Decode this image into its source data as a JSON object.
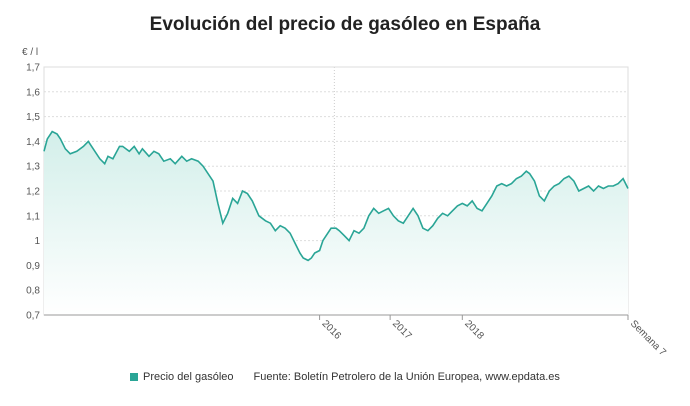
{
  "page": {
    "title": "Evolución del precio de gasóleo en España"
  },
  "legend": {
    "series_label": "Precio del gasóleo",
    "source": "Fuente: Boletín Petrolero de la Unión Europea, www.epdata.es"
  },
  "colors": {
    "line": "#2aa596",
    "fill_top": "#d3efea",
    "grid": "#dddddd",
    "axis": "#999999"
  },
  "chart_data": {
    "type": "area",
    "ylabel": "€ / l",
    "ylim": [
      0.7,
      1.7
    ],
    "yticks": [
      0.7,
      0.8,
      0.9,
      1,
      1.1,
      1.2,
      1.3,
      1.4,
      1.5,
      1.6,
      1.7
    ],
    "ytick_labels": [
      "0,7",
      "0,8",
      "0,9",
      "1",
      "1,1",
      "1,2",
      "1,3",
      "1,4",
      "1,5",
      "1,6",
      "1,7"
    ],
    "xlim": [
      0,
      356
    ],
    "xticks": [
      {
        "x": 168,
        "label": "2016"
      },
      {
        "x": 211,
        "label": "2017"
      },
      {
        "x": 255,
        "label": "2018"
      },
      {
        "x": 356,
        "label": "Semana 7"
      }
    ],
    "grid": true,
    "grid_vertical_dotted_at": [
      177
    ],
    "series": [
      {
        "name": "Precio del gasóleo",
        "x": [
          0,
          2,
          5,
          8,
          10,
          13,
          16,
          20,
          24,
          27,
          30,
          34,
          37,
          39,
          42,
          46,
          48,
          52,
          55,
          58,
          60,
          64,
          67,
          70,
          73,
          77,
          80,
          84,
          87,
          90,
          94,
          97,
          100,
          103,
          106,
          109,
          112,
          115,
          118,
          121,
          124,
          127,
          131,
          135,
          138,
          141,
          144,
          147,
          150,
          153,
          156,
          158,
          161,
          163,
          165,
          168,
          170,
          172,
          175,
          178,
          180,
          183,
          186,
          189,
          192,
          195,
          198,
          201,
          204,
          207,
          210,
          213,
          216,
          219,
          222,
          225,
          228,
          231,
          234,
          237,
          240,
          243,
          246,
          249,
          252,
          255,
          258,
          261,
          264,
          267,
          270,
          273,
          276,
          279,
          282,
          285,
          288,
          291,
          294,
          296,
          299,
          302,
          305,
          308,
          311,
          314,
          317,
          320,
          323,
          326,
          329,
          332,
          335,
          338,
          341,
          344,
          347,
          350,
          353,
          356
        ],
        "values": [
          1.36,
          1.41,
          1.44,
          1.43,
          1.41,
          1.37,
          1.35,
          1.36,
          1.38,
          1.4,
          1.37,
          1.33,
          1.31,
          1.34,
          1.33,
          1.38,
          1.38,
          1.36,
          1.38,
          1.35,
          1.37,
          1.34,
          1.36,
          1.35,
          1.32,
          1.33,
          1.31,
          1.34,
          1.32,
          1.33,
          1.32,
          1.3,
          1.27,
          1.24,
          1.15,
          1.07,
          1.11,
          1.17,
          1.15,
          1.2,
          1.19,
          1.16,
          1.1,
          1.08,
          1.07,
          1.04,
          1.06,
          1.05,
          1.03,
          0.99,
          0.95,
          0.93,
          0.92,
          0.93,
          0.95,
          0.96,
          1.0,
          1.02,
          1.05,
          1.05,
          1.04,
          1.02,
          1.0,
          1.04,
          1.03,
          1.05,
          1.1,
          1.13,
          1.11,
          1.12,
          1.13,
          1.1,
          1.08,
          1.07,
          1.1,
          1.13,
          1.1,
          1.05,
          1.04,
          1.06,
          1.09,
          1.11,
          1.1,
          1.12,
          1.14,
          1.15,
          1.14,
          1.16,
          1.13,
          1.12,
          1.15,
          1.18,
          1.22,
          1.23,
          1.22,
          1.23,
          1.25,
          1.26,
          1.28,
          1.27,
          1.24,
          1.18,
          1.16,
          1.2,
          1.22,
          1.23,
          1.25,
          1.26,
          1.24,
          1.2,
          1.21,
          1.22,
          1.2,
          1.22,
          1.21,
          1.22,
          1.22,
          1.23,
          1.25,
          1.21
        ]
      }
    ]
  }
}
